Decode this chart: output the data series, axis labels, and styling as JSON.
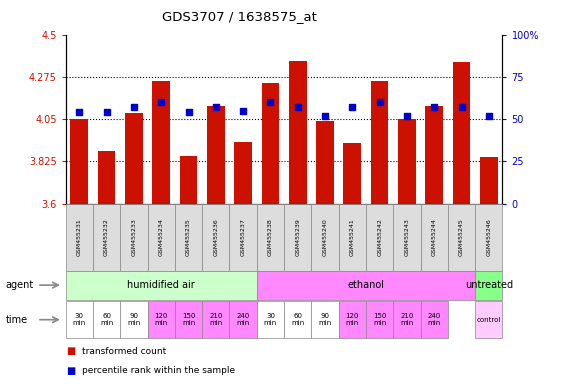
{
  "title": "GDS3707 / 1638575_at",
  "samples": [
    "GSM455231",
    "GSM455232",
    "GSM455233",
    "GSM455234",
    "GSM455235",
    "GSM455236",
    "GSM455237",
    "GSM455238",
    "GSM455239",
    "GSM455240",
    "GSM455241",
    "GSM455242",
    "GSM455243",
    "GSM455244",
    "GSM455245",
    "GSM455246"
  ],
  "transformed_count": [
    4.05,
    3.88,
    4.08,
    4.255,
    3.855,
    4.12,
    3.93,
    4.24,
    4.36,
    4.04,
    3.92,
    4.255,
    4.05,
    4.12,
    4.355,
    3.85
  ],
  "percentile_rank": [
    54,
    54,
    57,
    60,
    54,
    57,
    55,
    60,
    57,
    52,
    57,
    60,
    52,
    57,
    57,
    52
  ],
  "bar_color": "#cc1100",
  "dot_color": "#0000cc",
  "ylim_left": [
    3.6,
    4.5
  ],
  "ylim_right": [
    0,
    100
  ],
  "yticks_left": [
    3.6,
    3.825,
    4.05,
    4.275,
    4.5
  ],
  "yticks_right": [
    0,
    25,
    50,
    75,
    100
  ],
  "ytick_labels_left": [
    "3.6",
    "3.825",
    "4.05",
    "4.275",
    "4.5"
  ],
  "ytick_labels_right": [
    "0",
    "25",
    "50",
    "75",
    "100%"
  ],
  "agent_groups": [
    {
      "label": "humidified air",
      "start": 0,
      "end": 7,
      "color": "#ccffcc"
    },
    {
      "label": "ethanol",
      "start": 7,
      "end": 15,
      "color": "#ff88ff"
    },
    {
      "label": "untreated",
      "start": 15,
      "end": 16,
      "color": "#88ff88"
    }
  ],
  "time_groups": [
    {
      "label": "30\nmin",
      "start": 0,
      "end": 1,
      "color": "#ffffff"
    },
    {
      "label": "60\nmin",
      "start": 1,
      "end": 2,
      "color": "#ffffff"
    },
    {
      "label": "90\nmin",
      "start": 2,
      "end": 3,
      "color": "#ffffff"
    },
    {
      "label": "120\nmin",
      "start": 3,
      "end": 4,
      "color": "#ff88ff"
    },
    {
      "label": "150\nmin",
      "start": 4,
      "end": 5,
      "color": "#ff88ff"
    },
    {
      "label": "210\nmin",
      "start": 5,
      "end": 6,
      "color": "#ff88ff"
    },
    {
      "label": "240\nmin",
      "start": 6,
      "end": 7,
      "color": "#ff88ff"
    },
    {
      "label": "30\nmin",
      "start": 7,
      "end": 8,
      "color": "#ffffff"
    },
    {
      "label": "60\nmin",
      "start": 8,
      "end": 9,
      "color": "#ffffff"
    },
    {
      "label": "90\nmin",
      "start": 9,
      "end": 10,
      "color": "#ffffff"
    },
    {
      "label": "120\nmin",
      "start": 10,
      "end": 11,
      "color": "#ff88ff"
    },
    {
      "label": "150\nmin",
      "start": 11,
      "end": 12,
      "color": "#ff88ff"
    },
    {
      "label": "210\nmin",
      "start": 12,
      "end": 13,
      "color": "#ff88ff"
    },
    {
      "label": "240\nmin",
      "start": 13,
      "end": 14,
      "color": "#ff88ff"
    },
    {
      "label": "control",
      "start": 15,
      "end": 16,
      "color": "#ffccff"
    }
  ],
  "bg_color": "#ffffff",
  "left_tick_color": "#cc1100",
  "right_tick_color": "#0000cc",
  "sample_box_color": "#dddddd",
  "sample_box_edge": "#888888"
}
